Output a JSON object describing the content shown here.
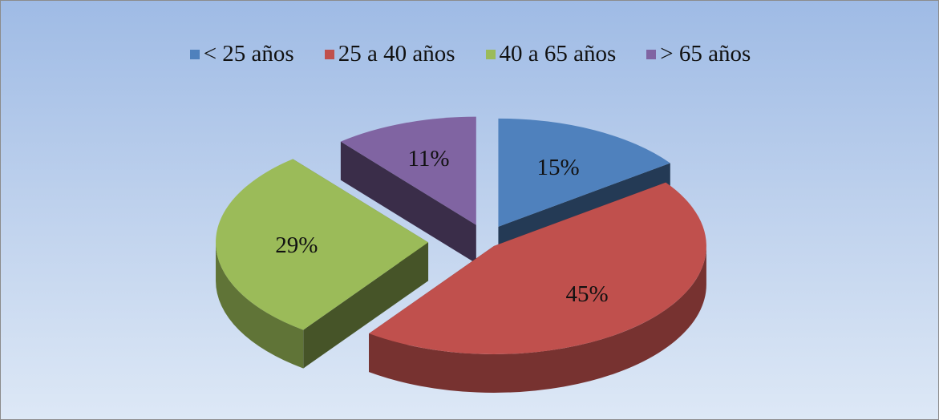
{
  "chart_data": {
    "type": "pie",
    "categories": [
      "< 25 años",
      "25 a 40 años",
      "40 a 65 años",
      "> 65 años"
    ],
    "values": [
      15,
      45,
      29,
      11
    ],
    "value_labels": [
      "15%",
      "45%",
      "29%",
      "11%"
    ],
    "colors": [
      "#4f81bd",
      "#c0504d",
      "#9bbb59",
      "#8064a2"
    ],
    "legend_position": "top",
    "style": "3d-exploded"
  }
}
